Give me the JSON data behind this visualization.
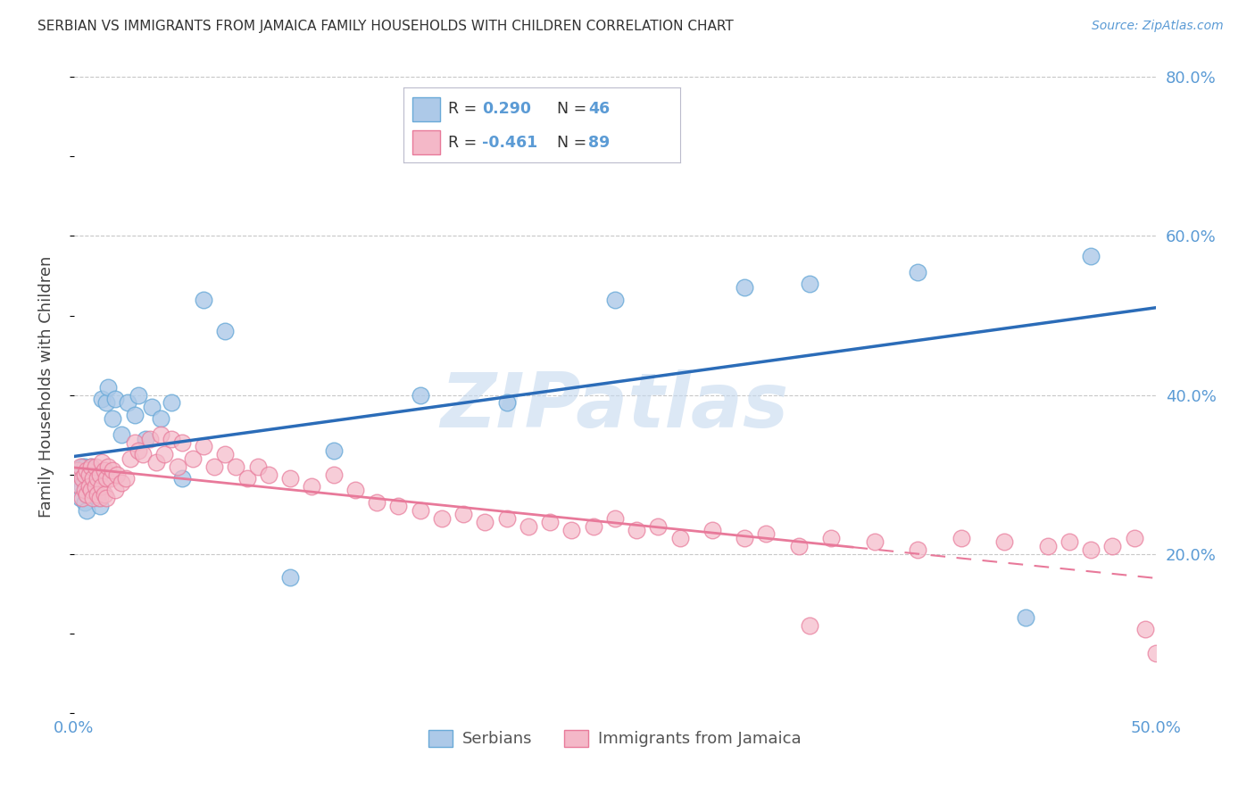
{
  "title": "SERBIAN VS IMMIGRANTS FROM JAMAICA FAMILY HOUSEHOLDS WITH CHILDREN CORRELATION CHART",
  "source": "Source: ZipAtlas.com",
  "ylabel": "Family Households with Children",
  "xlim": [
    0.0,
    0.5
  ],
  "ylim": [
    0.0,
    0.82
  ],
  "yticks": [
    0.2,
    0.4,
    0.6,
    0.8
  ],
  "ytick_labels": [
    "20.0%",
    "40.0%",
    "60.0%",
    "80.0%"
  ],
  "xticks": [
    0.0,
    0.1,
    0.2,
    0.3,
    0.4,
    0.5
  ],
  "xtick_labels": [
    "0.0%",
    "",
    "",
    "",
    "",
    "50.0%"
  ],
  "serbian_color": "#adc9e8",
  "serbian_edge_color": "#6aaad8",
  "jamaica_color": "#f4b8c8",
  "jamaica_edge_color": "#e87a9a",
  "line_serbian_color": "#2b6cb8",
  "line_jamaica_color": "#e8799a",
  "watermark_text": "ZIPatlas",
  "watermark_color": "#c5d9ef",
  "title_color": "#333333",
  "axis_color": "#5b9bd5",
  "grid_color": "#c8c8c8",
  "legend_box_color": "#e8e8f0",
  "serbian_R": "0.290",
  "serbian_N": "46",
  "jamaica_R": "-0.461",
  "jamaica_N": "89",
  "serbian_points_x": [
    0.002,
    0.003,
    0.003,
    0.004,
    0.004,
    0.005,
    0.005,
    0.005,
    0.006,
    0.006,
    0.006,
    0.007,
    0.007,
    0.008,
    0.008,
    0.009,
    0.009,
    0.01,
    0.011,
    0.012,
    0.013,
    0.015,
    0.016,
    0.018,
    0.019,
    0.022,
    0.025,
    0.028,
    0.03,
    0.033,
    0.036,
    0.04,
    0.045,
    0.05,
    0.06,
    0.07,
    0.1,
    0.12,
    0.16,
    0.2,
    0.25,
    0.31,
    0.34,
    0.39,
    0.44,
    0.47
  ],
  "serbian_points_y": [
    0.295,
    0.27,
    0.3,
    0.285,
    0.31,
    0.265,
    0.29,
    0.31,
    0.275,
    0.295,
    0.255,
    0.29,
    0.3,
    0.28,
    0.31,
    0.295,
    0.275,
    0.3,
    0.27,
    0.26,
    0.395,
    0.39,
    0.41,
    0.37,
    0.395,
    0.35,
    0.39,
    0.375,
    0.4,
    0.345,
    0.385,
    0.37,
    0.39,
    0.295,
    0.52,
    0.48,
    0.17,
    0.33,
    0.4,
    0.39,
    0.52,
    0.535,
    0.54,
    0.555,
    0.12,
    0.575
  ],
  "jamaica_points_x": [
    0.002,
    0.003,
    0.003,
    0.004,
    0.004,
    0.005,
    0.005,
    0.006,
    0.006,
    0.007,
    0.007,
    0.008,
    0.008,
    0.009,
    0.009,
    0.01,
    0.01,
    0.011,
    0.011,
    0.012,
    0.012,
    0.013,
    0.013,
    0.014,
    0.014,
    0.015,
    0.015,
    0.016,
    0.017,
    0.018,
    0.019,
    0.02,
    0.022,
    0.024,
    0.026,
    0.028,
    0.03,
    0.032,
    0.035,
    0.038,
    0.04,
    0.042,
    0.045,
    0.048,
    0.05,
    0.055,
    0.06,
    0.065,
    0.07,
    0.075,
    0.08,
    0.085,
    0.09,
    0.1,
    0.11,
    0.12,
    0.13,
    0.14,
    0.15,
    0.16,
    0.17,
    0.18,
    0.19,
    0.2,
    0.21,
    0.22,
    0.23,
    0.24,
    0.25,
    0.26,
    0.27,
    0.28,
    0.295,
    0.31,
    0.32,
    0.335,
    0.35,
    0.37,
    0.39,
    0.41,
    0.43,
    0.45,
    0.46,
    0.47,
    0.48,
    0.49,
    0.495,
    0.5,
    0.34
  ],
  "jamaica_points_y": [
    0.305,
    0.285,
    0.31,
    0.295,
    0.27,
    0.3,
    0.28,
    0.305,
    0.275,
    0.3,
    0.285,
    0.31,
    0.28,
    0.295,
    0.27,
    0.31,
    0.285,
    0.295,
    0.275,
    0.3,
    0.27,
    0.315,
    0.285,
    0.305,
    0.275,
    0.295,
    0.27,
    0.31,
    0.295,
    0.305,
    0.28,
    0.3,
    0.29,
    0.295,
    0.32,
    0.34,
    0.33,
    0.325,
    0.345,
    0.315,
    0.35,
    0.325,
    0.345,
    0.31,
    0.34,
    0.32,
    0.335,
    0.31,
    0.325,
    0.31,
    0.295,
    0.31,
    0.3,
    0.295,
    0.285,
    0.3,
    0.28,
    0.265,
    0.26,
    0.255,
    0.245,
    0.25,
    0.24,
    0.245,
    0.235,
    0.24,
    0.23,
    0.235,
    0.245,
    0.23,
    0.235,
    0.22,
    0.23,
    0.22,
    0.225,
    0.21,
    0.22,
    0.215,
    0.205,
    0.22,
    0.215,
    0.21,
    0.215,
    0.205,
    0.21,
    0.22,
    0.105,
    0.075,
    0.11
  ]
}
